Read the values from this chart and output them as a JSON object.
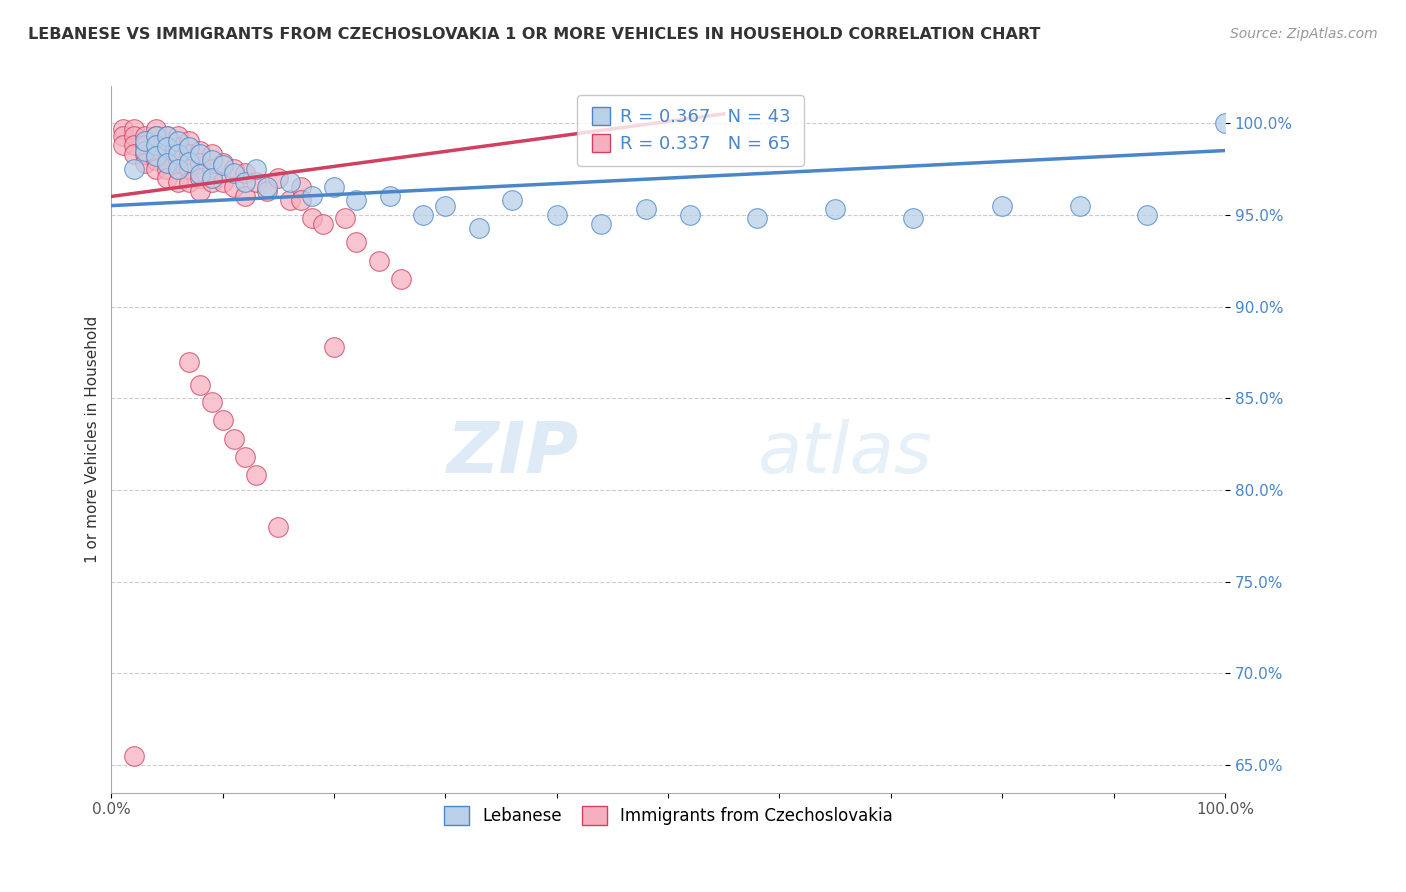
{
  "title": "LEBANESE VS IMMIGRANTS FROM CZECHOSLOVAKIA 1 OR MORE VEHICLES IN HOUSEHOLD CORRELATION CHART",
  "source": "Source: ZipAtlas.com",
  "xlabel": "",
  "ylabel": "1 or more Vehicles in Household",
  "xlim": [
    0.0,
    1.0
  ],
  "ylim": [
    0.635,
    1.02
  ],
  "x_ticks": [
    0.0,
    0.1,
    0.2,
    0.3,
    0.4,
    0.5,
    0.6,
    0.7,
    0.8,
    0.9,
    1.0
  ],
  "y_ticks": [
    0.65,
    0.7,
    0.75,
    0.8,
    0.85,
    0.9,
    0.95,
    1.0
  ],
  "y_tick_labels": [
    "65.0%",
    "70.0%",
    "75.0%",
    "80.0%",
    "85.0%",
    "90.0%",
    "95.0%",
    "100.0%"
  ],
  "x_tick_labels": [
    "0.0%",
    "",
    "",
    "",
    "",
    "",
    "",
    "",
    "",
    "",
    "100.0%"
  ],
  "blue_R": 0.367,
  "blue_N": 43,
  "pink_R": 0.337,
  "pink_N": 65,
  "legend_label_blue": "Lebanese",
  "legend_label_pink": "Immigrants from Czechoslovakia",
  "blue_color": "#b8d0e8",
  "pink_color": "#f5b0c0",
  "blue_line_color": "#4a86c8",
  "pink_line_color": "#d04060",
  "watermark_zip": "ZIP",
  "watermark_atlas": "atlas",
  "blue_scatter_x": [
    0.02,
    0.03,
    0.03,
    0.04,
    0.04,
    0.04,
    0.05,
    0.05,
    0.05,
    0.06,
    0.06,
    0.06,
    0.07,
    0.07,
    0.08,
    0.08,
    0.09,
    0.09,
    0.1,
    0.11,
    0.12,
    0.13,
    0.14,
    0.16,
    0.18,
    0.2,
    0.22,
    0.25,
    0.28,
    0.3,
    0.33,
    0.36,
    0.4,
    0.44,
    0.48,
    0.52,
    0.58,
    0.65,
    0.72,
    0.8,
    0.87,
    0.93,
    1.0
  ],
  "blue_scatter_y": [
    0.975,
    0.985,
    0.99,
    0.993,
    0.988,
    0.982,
    0.993,
    0.987,
    0.978,
    0.99,
    0.983,
    0.975,
    0.987,
    0.979,
    0.983,
    0.972,
    0.98,
    0.97,
    0.977,
    0.973,
    0.968,
    0.975,
    0.965,
    0.968,
    0.96,
    0.965,
    0.958,
    0.96,
    0.95,
    0.955,
    0.943,
    0.958,
    0.95,
    0.945,
    0.953,
    0.95,
    0.948,
    0.953,
    0.948,
    0.955,
    0.955,
    0.95,
    1.0
  ],
  "pink_scatter_x": [
    0.01,
    0.01,
    0.01,
    0.02,
    0.02,
    0.02,
    0.02,
    0.03,
    0.03,
    0.03,
    0.03,
    0.04,
    0.04,
    0.04,
    0.04,
    0.04,
    0.05,
    0.05,
    0.05,
    0.05,
    0.05,
    0.06,
    0.06,
    0.06,
    0.06,
    0.06,
    0.07,
    0.07,
    0.07,
    0.07,
    0.08,
    0.08,
    0.08,
    0.08,
    0.09,
    0.09,
    0.09,
    0.1,
    0.1,
    0.11,
    0.11,
    0.12,
    0.12,
    0.13,
    0.14,
    0.15,
    0.16,
    0.17,
    0.17,
    0.18,
    0.19,
    0.2,
    0.21,
    0.22,
    0.24,
    0.26,
    0.07,
    0.08,
    0.09,
    0.1,
    0.11,
    0.12,
    0.13,
    0.15,
    0.02
  ],
  "pink_scatter_y": [
    0.997,
    0.993,
    0.988,
    0.997,
    0.993,
    0.988,
    0.983,
    0.993,
    0.988,
    0.983,
    0.978,
    0.997,
    0.993,
    0.985,
    0.98,
    0.975,
    0.993,
    0.987,
    0.98,
    0.975,
    0.97,
    0.993,
    0.987,
    0.98,
    0.975,
    0.968,
    0.99,
    0.983,
    0.975,
    0.968,
    0.985,
    0.978,
    0.97,
    0.963,
    0.983,
    0.975,
    0.968,
    0.978,
    0.968,
    0.975,
    0.965,
    0.973,
    0.96,
    0.968,
    0.963,
    0.97,
    0.958,
    0.965,
    0.958,
    0.948,
    0.945,
    0.878,
    0.948,
    0.935,
    0.925,
    0.915,
    0.87,
    0.857,
    0.848,
    0.838,
    0.828,
    0.818,
    0.808,
    0.78,
    0.655
  ],
  "blue_trend_x": [
    0.0,
    1.0
  ],
  "blue_trend_y": [
    0.955,
    0.985
  ],
  "pink_trend_x": [
    0.0,
    0.55
  ],
  "pink_trend_y": [
    0.96,
    1.005
  ]
}
